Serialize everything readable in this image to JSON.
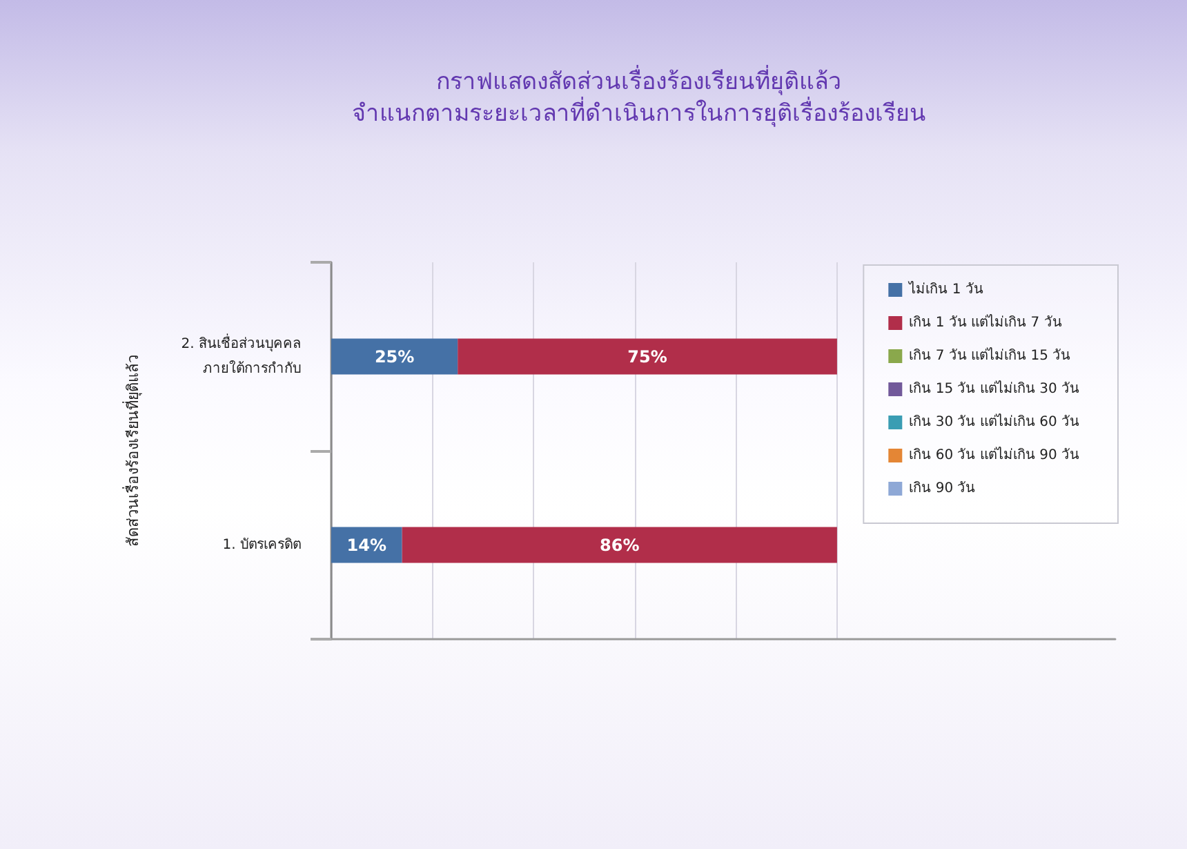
{
  "chart_data": {
    "type": "bar",
    "orientation": "horizontal",
    "stacked": true,
    "title": "กราฟแสดงสัดส่วนเรื่องร้องเรียนที่ยุติแล้ว",
    "subtitle": "จำแนกตามระยะเวลาที่ดำเนินการในการยุติเรื่องร้องเรียน",
    "ylabel": "สัดส่วนเรื่องร้องเรียนที่ยุติแล้ว",
    "categories": [
      "2. สินเชื่อส่วนบุคคล ภายใต้การกำกับ",
      "1. บัตรเครดิต"
    ],
    "series": [
      {
        "name": "ไม่เกิน 1 วัน",
        "color": "#4571a6",
        "values": [
          25,
          14
        ],
        "value_labels": [
          "25%",
          "14%"
        ]
      },
      {
        "name": "เกิน 1 วัน แต่ไม่เกิน 7 วัน",
        "color": "#b12e4a",
        "values": [
          75,
          86
        ],
        "value_labels": [
          "75%",
          "86%"
        ]
      },
      {
        "name": "เกิน 7 วัน แต่ไม่เกิน 15 วัน",
        "color": "#8aa84c",
        "values": [
          null,
          null
        ]
      },
      {
        "name": "เกิน 15 วัน แต่ไม่เกิน 30 วัน",
        "color": "#72599a",
        "values": [
          null,
          null
        ]
      },
      {
        "name": "เกิน 30 วัน แต่ไม่เกิน 60 วัน",
        "color": "#3a9db3",
        "values": [
          null,
          null
        ]
      },
      {
        "name": "เกิน 60 วัน แต่ไม่เกิน 90 วัน",
        "color": "#e48635",
        "values": [
          null,
          null
        ]
      },
      {
        "name": "เกิน 90 วัน",
        "color": "#8ea8d6",
        "values": [
          null,
          null
        ]
      }
    ],
    "xlim": [
      0,
      155
    ],
    "xticks": [
      {
        "value": 0,
        "label": null
      },
      {
        "value": 20,
        "label": null
      },
      {
        "value": 40,
        "label": null
      },
      {
        "value": 60,
        "label": null
      },
      {
        "value": 80,
        "label": null
      },
      {
        "value": 100,
        "label": null
      }
    ],
    "grid": "x",
    "legend": "top right",
    "tick_labels": "y"
  }
}
